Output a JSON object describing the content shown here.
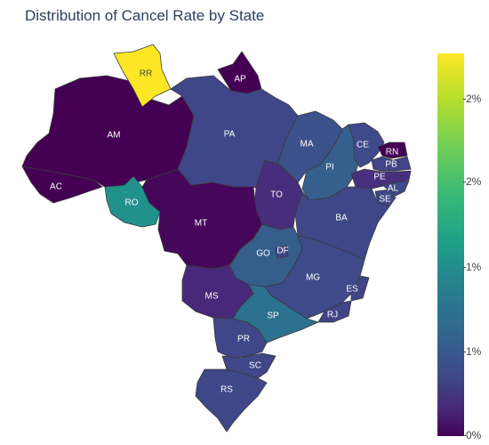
{
  "title": "Distribution of Cancel Rate by State",
  "palette": {
    "low": "#440154",
    "mid_low": "#433e85",
    "mid": "#21918c",
    "high": "#fde725",
    "border": "#3a3a3a"
  },
  "colorbar": {
    "ticks": [
      "2%",
      "2%",
      "1%",
      "1%",
      "0%"
    ]
  },
  "states": [
    {
      "code": "RR",
      "value": 2.5,
      "fill": "#fde725"
    },
    {
      "code": "AP",
      "value": 0.1,
      "fill": "#440154"
    },
    {
      "code": "AM",
      "value": 0.1,
      "fill": "#440154"
    },
    {
      "code": "PA",
      "value": 0.75,
      "fill": "#3f4788"
    },
    {
      "code": "MA",
      "value": 0.85,
      "fill": "#3b528b"
    },
    {
      "code": "CE",
      "value": 0.8,
      "fill": "#3e4a89"
    },
    {
      "code": "RN",
      "value": 0.05,
      "fill": "#440154"
    },
    {
      "code": "PB",
      "value": 0.7,
      "fill": "#414487"
    },
    {
      "code": "PE",
      "value": 0.5,
      "fill": "#472f7d"
    },
    {
      "code": "AL",
      "value": 0.8,
      "fill": "#3e4a89"
    },
    {
      "code": "SE",
      "value": 0.75,
      "fill": "#3f4788"
    },
    {
      "code": "PI",
      "value": 1.0,
      "fill": "#355f8d"
    },
    {
      "code": "AC",
      "value": 0.1,
      "fill": "#440154"
    },
    {
      "code": "RO",
      "value": 1.7,
      "fill": "#21918c"
    },
    {
      "code": "MT",
      "value": 0.15,
      "fill": "#46075a"
    },
    {
      "code": "TO",
      "value": 0.5,
      "fill": "#472d7b"
    },
    {
      "code": "BA",
      "value": 0.75,
      "fill": "#3f4788"
    },
    {
      "code": "GO",
      "value": 1.0,
      "fill": "#355e8d"
    },
    {
      "code": "DF",
      "value": 0.7,
      "fill": "#414487"
    },
    {
      "code": "MG",
      "value": 0.8,
      "fill": "#3e4a89"
    },
    {
      "code": "ES",
      "value": 0.7,
      "fill": "#414487"
    },
    {
      "code": "RJ",
      "value": 0.7,
      "fill": "#414487"
    },
    {
      "code": "MS",
      "value": 0.5,
      "fill": "#482878"
    },
    {
      "code": "SP",
      "value": 1.2,
      "fill": "#2c728e"
    },
    {
      "code": "PR",
      "value": 0.75,
      "fill": "#3f4788"
    },
    {
      "code": "SC",
      "value": 0.75,
      "fill": "#3f4788"
    },
    {
      "code": "RS",
      "value": 0.75,
      "fill": "#3f4788"
    }
  ]
}
